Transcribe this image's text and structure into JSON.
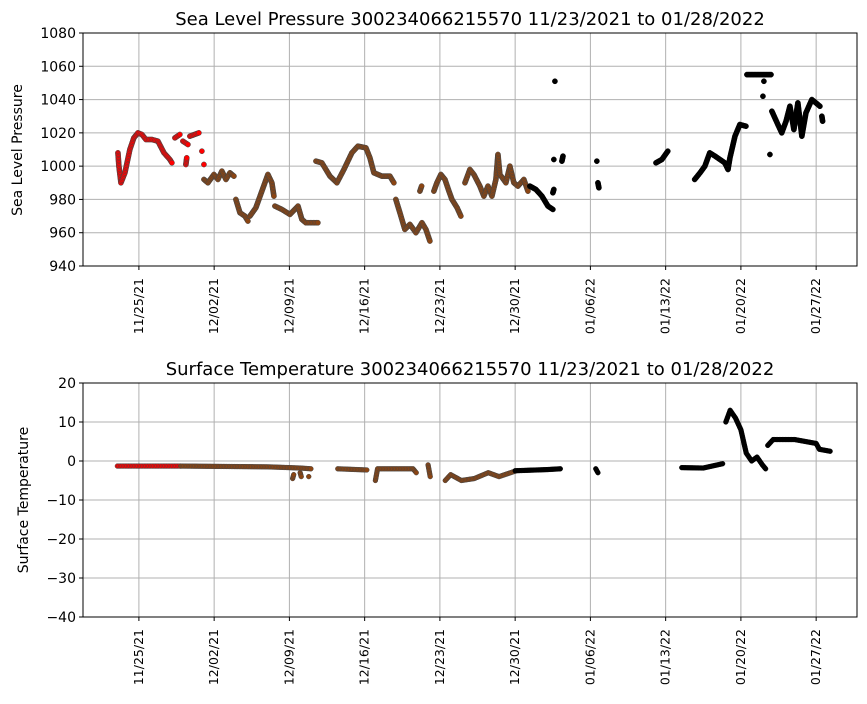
{
  "chart_data": [
    {
      "type": "scatter",
      "title": "Sea Level Pressure 300234066215570  11/23/2021 to 01/28/2022",
      "xlabel": "",
      "ylabel": "Sea Level Pressure",
      "x_units": "days since 11/25/21",
      "xlim": [
        -5.2,
        66.8
      ],
      "ylim": [
        940,
        1080
      ],
      "yticks": [
        940,
        960,
        980,
        1000,
        1020,
        1040,
        1060,
        1080
      ],
      "xticks": [
        0,
        7,
        14,
        21,
        28,
        35,
        42,
        49,
        56,
        63
      ],
      "xtick_labels": [
        "11/25/21",
        "12/02/21",
        "12/09/21",
        "12/16/21",
        "12/23/21",
        "12/30/21",
        "01/06/22",
        "01/13/22",
        "01/20/22",
        "01/27/22"
      ],
      "grid": true,
      "series": [
        {
          "color": "#ff0000",
          "points": [
            [
              -1.95,
              1008
            ],
            [
              -1.86,
              1000
            ],
            [
              -1.67,
              990
            ],
            [
              -1.3,
              996
            ],
            [
              -0.84,
              1010
            ],
            [
              -0.47,
              1017
            ],
            [
              -0.09,
              1020
            ],
            [
              0.28,
              1019
            ],
            [
              0.65,
              1016
            ],
            [
              1.21,
              1016
            ],
            [
              1.77,
              1015
            ],
            [
              2.33,
              1008
            ],
            [
              2.88,
              1004
            ],
            [
              3.07,
              1002
            ]
          ]
        },
        {
          "color": "#ff0000",
          "points": [
            [
              3.35,
              1017
            ],
            [
              3.81,
              1019
            ]
          ]
        },
        {
          "color": "#ff0000",
          "points": [
            [
              4.09,
              1015
            ],
            [
              4.56,
              1013
            ]
          ]
        },
        {
          "color": "#ff0000",
          "points": [
            [
              4.37,
              1001
            ],
            [
              4.45,
              1005
            ]
          ]
        },
        {
          "color": "#ff0000",
          "points": [
            [
              4.74,
              1018
            ],
            [
              5.58,
              1020
            ]
          ]
        },
        {
          "color": "#ff0000",
          "points": [
            [
              5.86,
              1009
            ]
          ]
        },
        {
          "color": "#ff0000",
          "points": [
            [
              6.05,
              1001
            ]
          ]
        },
        {
          "color": "#8b4513",
          "points": [
            [
              6.05,
              992
            ],
            [
              6.42,
              990
            ],
            [
              6.98,
              995
            ],
            [
              7.35,
              992
            ],
            [
              7.72,
              997
            ],
            [
              8.1,
              992
            ],
            [
              8.47,
              996
            ],
            [
              8.84,
              994
            ]
          ]
        },
        {
          "color": "#8b4513",
          "points": [
            [
              9.02,
              980
            ],
            [
              9.4,
              972
            ],
            [
              9.86,
              970
            ],
            [
              10.14,
              967
            ]
          ]
        },
        {
          "color": "#8b4513",
          "points": [
            [
              10.33,
              970
            ],
            [
              10.88,
              975
            ],
            [
              11.44,
              985
            ],
            [
              12.0,
              995
            ],
            [
              12.37,
              990
            ],
            [
              12.56,
              982
            ]
          ]
        },
        {
          "color": "#8b4513",
          "points": [
            [
              12.65,
              976
            ],
            [
              13.3,
              974
            ],
            [
              14.05,
              971
            ],
            [
              14.8,
              976
            ],
            [
              15.16,
              968
            ],
            [
              15.53,
              966
            ],
            [
              16.65,
              966
            ]
          ]
        },
        {
          "color": "#8b4513",
          "points": [
            [
              16.47,
              1003
            ],
            [
              17.02,
              1002
            ],
            [
              17.77,
              994
            ],
            [
              18.42,
              990
            ],
            [
              19.07,
              998
            ],
            [
              19.81,
              1008
            ],
            [
              20.37,
              1012
            ],
            [
              21.12,
              1011
            ],
            [
              21.49,
              1005
            ],
            [
              21.86,
              996
            ],
            [
              22.6,
              994
            ],
            [
              23.35,
              994
            ],
            [
              23.72,
              990
            ]
          ]
        },
        {
          "color": "#8b4513",
          "points": [
            [
              23.9,
              980
            ],
            [
              24.28,
              972
            ],
            [
              24.74,
              962
            ],
            [
              25.21,
              965
            ],
            [
              25.77,
              960
            ],
            [
              26.33,
              966
            ],
            [
              26.7,
              962
            ],
            [
              27.07,
              955
            ]
          ]
        },
        {
          "color": "#8b4513",
          "points": [
            [
              26.14,
              985
            ],
            [
              26.3,
              988
            ]
          ]
        },
        {
          "color": "#8b4513",
          "points": [
            [
              27.44,
              985
            ],
            [
              27.72,
              990
            ],
            [
              28.09,
              995
            ],
            [
              28.47,
              992
            ],
            [
              28.84,
              985
            ],
            [
              29.12,
              980
            ],
            [
              29.6,
              975
            ],
            [
              29.95,
              970
            ]
          ]
        },
        {
          "color": "#8b4513",
          "points": [
            [
              30.33,
              990
            ],
            [
              30.79,
              998
            ],
            [
              31.16,
              995
            ],
            [
              31.72,
              988
            ],
            [
              32.09,
              982
            ],
            [
              32.47,
              988
            ],
            [
              32.84,
              982
            ],
            [
              33.21,
              992
            ],
            [
              33.4,
              1007
            ],
            [
              33.58,
              995
            ],
            [
              34.14,
              990
            ],
            [
              34.51,
              1000
            ],
            [
              34.88,
              990
            ],
            [
              35.26,
              988
            ],
            [
              35.81,
              992
            ],
            [
              36.19,
              985
            ]
          ]
        },
        {
          "color": "#000000",
          "points": [
            [
              36.37,
              988
            ],
            [
              36.93,
              986
            ],
            [
              37.49,
              982
            ],
            [
              38.05,
              976
            ],
            [
              38.51,
              974
            ]
          ]
        },
        {
          "color": "#000000",
          "points": [
            [
              38.51,
              984
            ],
            [
              38.6,
              986
            ]
          ]
        },
        {
          "color": "#000000",
          "points": [
            [
              38.7,
              1051
            ]
          ]
        },
        {
          "color": "#000000",
          "points": [
            [
              38.6,
              1004
            ]
          ]
        },
        {
          "color": "#000000",
          "points": [
            [
              39.35,
              1003
            ],
            [
              39.45,
              1006
            ]
          ]
        },
        {
          "color": "#000000",
          "points": [
            [
              42.6,
              1003
            ]
          ]
        },
        {
          "color": "#000000",
          "points": [
            [
              42.7,
              990
            ],
            [
              42.79,
              987
            ]
          ]
        },
        {
          "color": "#000000",
          "points": [
            [
              48.1,
              1002
            ],
            [
              48.65,
              1004
            ],
            [
              49.2,
              1009
            ]
          ]
        },
        {
          "color": "#000000",
          "points": [
            [
              51.7,
              992
            ],
            [
              52.2,
              996
            ],
            [
              52.65,
              1000
            ],
            [
              53.1,
              1008
            ],
            [
              53.6,
              1006
            ],
            [
              54.05,
              1004
            ],
            [
              54.5,
              1002
            ],
            [
              54.8,
              998
            ],
            [
              54.98,
              1005
            ],
            [
              55.45,
              1018
            ],
            [
              55.9,
              1025
            ],
            [
              56.47,
              1024
            ]
          ]
        },
        {
          "color": "#000000",
          "points": [
            [
              56.56,
              1055
            ],
            [
              58.8,
              1055
            ]
          ]
        },
        {
          "color": "#000000",
          "points": [
            [
              58.14,
              1051
            ]
          ]
        },
        {
          "color": "#000000",
          "points": [
            [
              58.05,
              1042
            ]
          ]
        },
        {
          "color": "#000000",
          "points": [
            [
              58.7,
              1007
            ]
          ]
        },
        {
          "color": "#000000",
          "points": [
            [
              58.88,
              1033
            ],
            [
              59.44,
              1025
            ],
            [
              59.8,
              1020
            ],
            [
              60.2,
              1027
            ],
            [
              60.56,
              1036
            ],
            [
              60.93,
              1022
            ],
            [
              61.3,
              1038
            ],
            [
              61.67,
              1018
            ],
            [
              62.05,
              1032
            ],
            [
              62.6,
              1040
            ],
            [
              62.98,
              1038
            ],
            [
              63.35,
              1036
            ]
          ]
        },
        {
          "color": "#000000",
          "points": [
            [
              63.53,
              1030
            ],
            [
              63.6,
              1027
            ]
          ]
        }
      ]
    },
    {
      "type": "scatter",
      "title": "Surface Temperature 300234066215570  11/23/2021 to 01/28/2022",
      "xlabel": "",
      "ylabel": "Surface Temperature",
      "x_units": "days since 11/25/21",
      "xlim": [
        -5.2,
        66.8
      ],
      "ylim": [
        -40,
        20
      ],
      "yticks": [
        -40,
        -30,
        -20,
        -10,
        0,
        10,
        20
      ],
      "ytick_labels": [
        "−40",
        "−30",
        "−20",
        "−10",
        "0",
        "10",
        "20"
      ],
      "xticks": [
        0,
        7,
        14,
        21,
        28,
        35,
        42,
        49,
        56,
        63
      ],
      "xtick_labels": [
        "11/25/21",
        "12/02/21",
        "12/09/21",
        "12/16/21",
        "12/23/21",
        "12/30/21",
        "01/06/22",
        "01/13/22",
        "01/20/22",
        "01/27/22"
      ],
      "grid": true,
      "series": [
        {
          "color": "#ff0000",
          "points": [
            [
              -2.0,
              -1.3
            ],
            [
              3.9,
              -1.3
            ]
          ]
        },
        {
          "color": "#8b4513",
          "points": [
            [
              3.9,
              -1.3
            ],
            [
              8.0,
              -1.4
            ],
            [
              12.0,
              -1.5
            ],
            [
              15.0,
              -1.8
            ],
            [
              16.0,
              -2.0
            ]
          ]
        },
        {
          "color": "#8b4513",
          "points": [
            [
              14.3,
              -4.5
            ],
            [
              14.4,
              -3.5
            ]
          ]
        },
        {
          "color": "#8b4513",
          "points": [
            [
              15.0,
              -3.0
            ],
            [
              15.1,
              -4.0
            ]
          ]
        },
        {
          "color": "#8b4513",
          "points": [
            [
              15.8,
              -4.0
            ]
          ]
        },
        {
          "color": "#8b4513",
          "points": [
            [
              18.5,
              -2.0
            ],
            [
              21.2,
              -2.3
            ]
          ]
        },
        {
          "color": "#8b4513",
          "points": [
            [
              22.0,
              -5.0
            ],
            [
              22.2,
              -2.0
            ],
            [
              25.5,
              -2.0
            ],
            [
              25.8,
              -3.0
            ]
          ]
        },
        {
          "color": "#8b4513",
          "points": [
            [
              26.9,
              -1.0
            ],
            [
              27.1,
              -4.0
            ]
          ]
        },
        {
          "color": "#8b4513",
          "points": [
            [
              28.5,
              -5.0
            ],
            [
              29.0,
              -3.5
            ],
            [
              30.0,
              -5.0
            ],
            [
              31.2,
              -4.5
            ],
            [
              32.5,
              -3.0
            ],
            [
              33.5,
              -4.0
            ],
            [
              35.0,
              -2.6
            ]
          ]
        },
        {
          "color": "#000000",
          "points": [
            [
              35.0,
              -2.5
            ],
            [
              38.0,
              -2.2
            ],
            [
              39.2,
              -2.0
            ]
          ]
        },
        {
          "color": "#000000",
          "points": [
            [
              42.5,
              -2.0
            ],
            [
              42.7,
              -3.0
            ]
          ]
        },
        {
          "color": "#000000",
          "points": [
            [
              50.5,
              -1.7
            ],
            [
              52.5,
              -1.8
            ],
            [
              54.3,
              -0.7
            ]
          ]
        },
        {
          "color": "#000000",
          "points": [
            [
              54.6,
              10
            ],
            [
              55.0,
              13
            ],
            [
              55.5,
              11
            ],
            [
              56.0,
              8
            ],
            [
              56.5,
              2
            ],
            [
              57.0,
              0
            ],
            [
              57.5,
              1
            ],
            [
              58.0,
              -1
            ],
            [
              58.3,
              -2
            ]
          ]
        },
        {
          "color": "#000000",
          "points": [
            [
              58.5,
              4
            ],
            [
              59.0,
              5.5
            ],
            [
              61.0,
              5.5
            ],
            [
              63.0,
              4.5
            ],
            [
              63.3,
              3
            ],
            [
              64.3,
              2.5
            ]
          ]
        }
      ]
    }
  ]
}
